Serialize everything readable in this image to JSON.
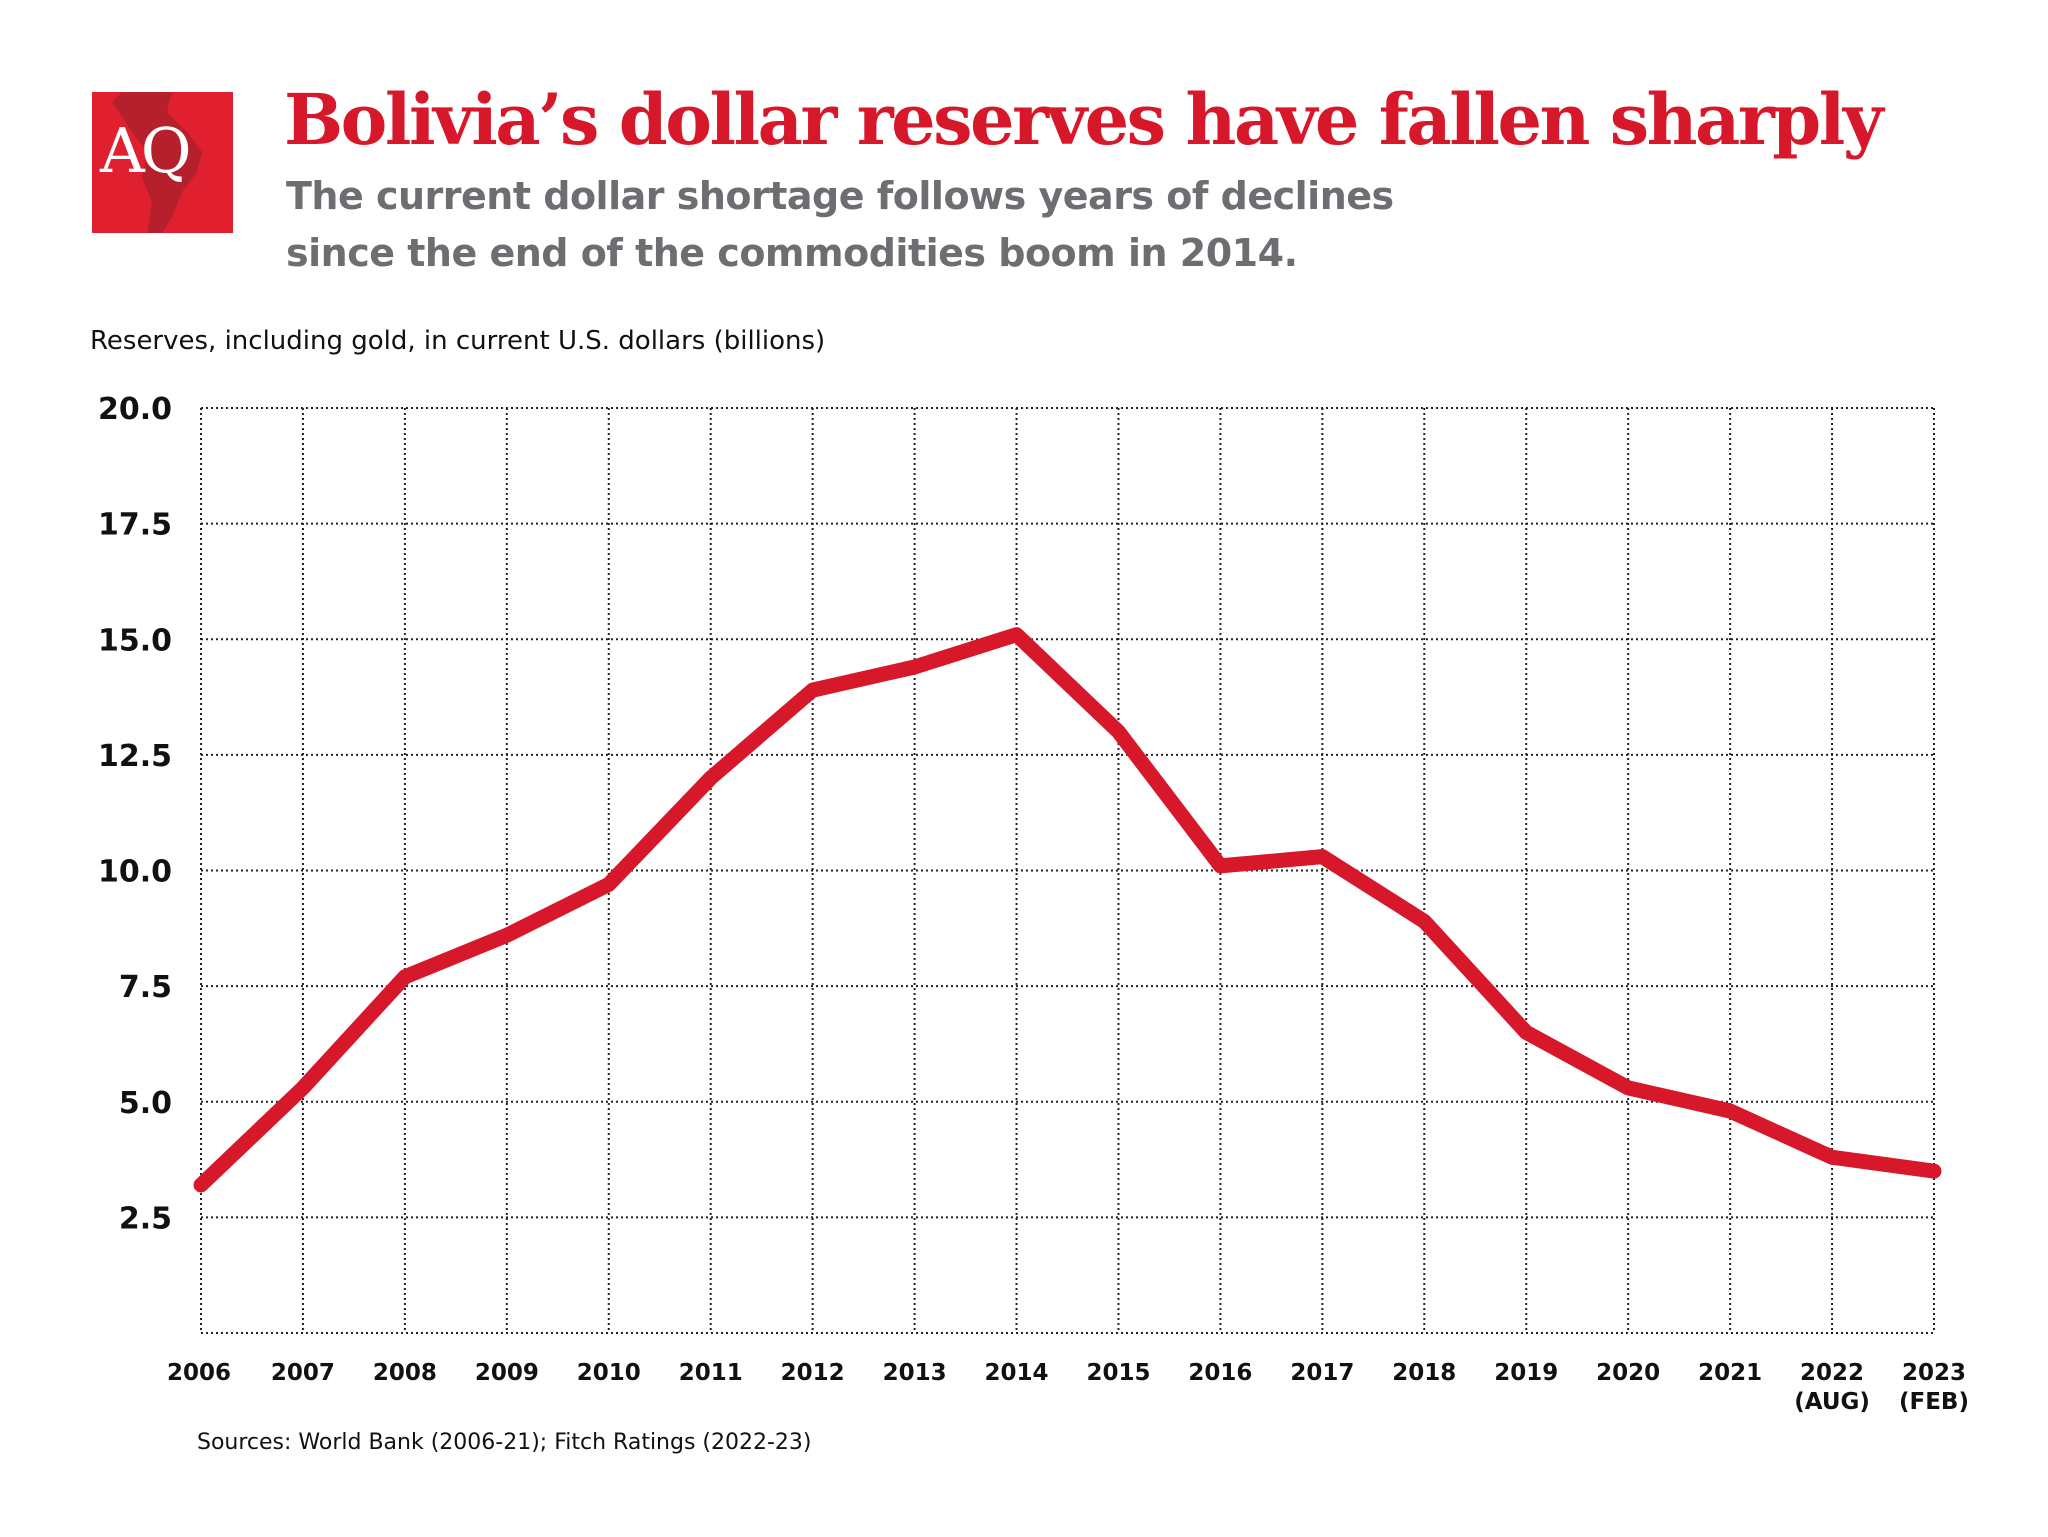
{
  "logo": {
    "text": "AQ",
    "color": "#e01f2f"
  },
  "header": {
    "title": "Bolivia’s dollar reserves have fallen sharply",
    "subtitle_line1": "The current dollar shortage follows years of declines",
    "subtitle_line2": "since the end of the commodities boom in 2014."
  },
  "chart_data": {
    "type": "line",
    "ylabel": "Reserves, including gold, in current U.S. dollars (billions)",
    "categories": [
      "2006",
      "2007",
      "2008",
      "2009",
      "2010",
      "2011",
      "2012",
      "2013",
      "2014",
      "2015",
      "2016",
      "2017",
      "2018",
      "2019",
      "2020",
      "2021",
      "2022\n(AUG)",
      "2023\n(FEB)"
    ],
    "series": [
      {
        "values": [
          3.2,
          5.3,
          7.7,
          8.6,
          9.7,
          12.0,
          13.9,
          14.4,
          15.1,
          13.0,
          10.1,
          10.3,
          8.9,
          6.5,
          5.3,
          4.8,
          3.8,
          3.5
        ],
        "color": "#d7182a"
      }
    ],
    "ylim": [
      0,
      20
    ],
    "yticks": [
      "2.5",
      "5.0",
      "7.5",
      "10.0",
      "12.5",
      "15.0",
      "17.5",
      "20.0"
    ],
    "grid": true,
    "grid_style": "dotted",
    "legend": "none",
    "source": "Sources: World Bank (2006-21); Fitch Ratings (2022-23)"
  }
}
